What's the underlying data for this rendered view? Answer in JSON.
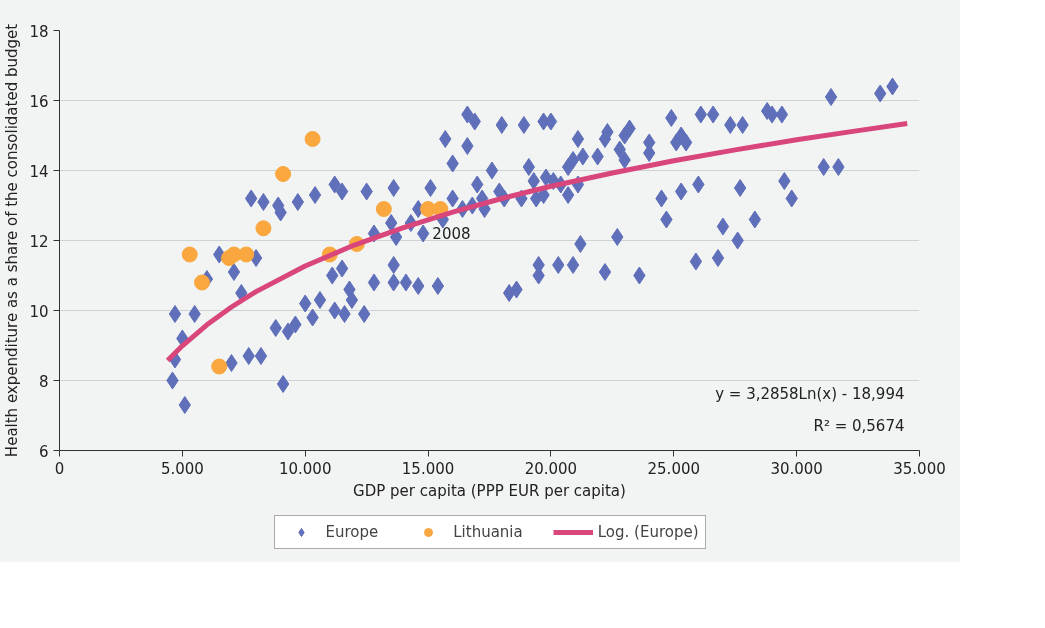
{
  "chart_data": {
    "type": "scatter",
    "xlabel": "GDP per capita (PPP EUR per capita)",
    "ylabel": "Health expenditure as a share of the consolidated budget",
    "xlim": [
      0,
      35000
    ],
    "ylim": [
      6,
      18
    ],
    "xticks": [
      0,
      {
        "value": 5000,
        "label": "5.000"
      },
      {
        "value": 10000,
        "label": "10.000"
      },
      {
        "value": 15000,
        "label": "15.000"
      },
      {
        "value": 20000,
        "label": "20.000"
      },
      {
        "value": 25000,
        "label": "25.000"
      },
      {
        "value": 30000,
        "label": "30.000"
      },
      {
        "value": 35000,
        "label": "35.000"
      }
    ],
    "yticks": [
      6,
      8,
      10,
      12,
      14,
      16,
      18
    ],
    "grid": "y",
    "legend": "bottom",
    "annotations": [
      {
        "text": "2008",
        "x": 15500,
        "y": 12.9
      },
      "y = 3,2858Ln(x) - 18,994",
      "R² = 0,5674"
    ],
    "series": [
      {
        "name": "Europe",
        "type": "scatter",
        "marker": "diamond",
        "color": "#5f6fb9",
        "x": [
          7800,
          8300,
          8900,
          9000,
          9700,
          10400,
          11200,
          11500,
          12500,
          13600,
          6500,
          8000,
          7100,
          6000,
          7400,
          4700,
          5500,
          5000,
          4700,
          7000,
          7700,
          8200,
          4600,
          5100,
          9100,
          8800,
          9300,
          9600,
          10000,
          10300,
          10600,
          11200,
          11600,
          11800,
          11900,
          12400,
          11500,
          11100,
          12800,
          13500,
          13700,
          12800,
          13600,
          13600,
          16600,
          16900,
          18000,
          18900,
          19700,
          20000,
          15700,
          16600,
          16000,
          21100,
          22300,
          22200,
          23000,
          22800,
          23000,
          20900,
          21300,
          21900,
          20700,
          19100,
          17600,
          15100,
          17000,
          19300,
          19800,
          20100,
          20400,
          21100,
          20700,
          17900,
          16000,
          17200,
          17300,
          16400,
          16800,
          18100,
          18800,
          19400,
          19700,
          14600,
          14300,
          14800,
          15600,
          21200,
          22700,
          14100,
          14600,
          15400,
          19500,
          19500,
          20300,
          20900,
          22200,
          18300,
          18600,
          31400,
          33400,
          33900,
          28800,
          29000,
          29400,
          26100,
          26600,
          27300,
          27800,
          24900,
          23200,
          24000,
          24000,
          25300,
          25100,
          25500,
          31100,
          31700,
          29500,
          29800,
          24500,
          25300,
          26000,
          27700,
          24700,
          27000,
          28300,
          27600,
          25900,
          26800,
          23600
        ],
        "values": [
          13.2,
          13.1,
          13.0,
          12.8,
          13.1,
          13.3,
          13.6,
          13.4,
          13.4,
          13.5,
          11.6,
          11.5,
          11.1,
          10.9,
          10.5,
          9.9,
          9.9,
          9.2,
          8.6,
          8.5,
          8.7,
          8.7,
          8.0,
          7.3,
          7.9,
          9.5,
          9.4,
          9.6,
          10.2,
          9.8,
          10.3,
          10.0,
          9.9,
          10.6,
          10.3,
          9.9,
          11.2,
          11.0,
          12.2,
          12.5,
          12.1,
          10.8,
          10.8,
          11.3,
          15.6,
          15.4,
          15.3,
          15.3,
          15.4,
          15.4,
          14.9,
          14.7,
          14.2,
          14.9,
          15.1,
          14.9,
          15.0,
          14.6,
          14.3,
          14.3,
          14.4,
          14.4,
          14.1,
          14.1,
          14.0,
          13.5,
          13.6,
          13.7,
          13.8,
          13.7,
          13.6,
          13.6,
          13.3,
          13.4,
          13.2,
          13.2,
          12.9,
          12.9,
          13.0,
          13.2,
          13.2,
          13.2,
          13.3,
          12.9,
          12.5,
          12.2,
          12.6,
          11.9,
          12.1,
          10.8,
          10.7,
          10.7,
          11.3,
          11.0,
          11.3,
          11.3,
          11.1,
          10.5,
          10.6,
          16.1,
          16.2,
          16.4,
          15.7,
          15.6,
          15.6,
          15.6,
          15.6,
          15.3,
          15.3,
          15.5,
          15.2,
          14.8,
          14.5,
          15.0,
          14.8,
          14.8,
          14.1,
          14.1,
          13.7,
          13.2,
          13.2,
          13.4,
          13.6,
          13.5,
          12.6,
          12.4,
          12.6,
          12.0,
          11.4,
          11.5,
          11.0
        ]
      },
      {
        "name": "Lithuania",
        "type": "scatter",
        "marker": "circle",
        "color": "#f9a73e",
        "x": [
          5300,
          5800,
          6500,
          6900,
          7100,
          7600,
          8300,
          9100,
          10300,
          11000,
          12100,
          13200,
          15000,
          15500
        ],
        "values": [
          11.6,
          10.8,
          8.4,
          11.5,
          11.6,
          11.6,
          12.35,
          13.9,
          14.9,
          11.6,
          11.9,
          12.9,
          12.9,
          12.9
        ]
      },
      {
        "name": "Log. (Europe)",
        "type": "line",
        "marker": "none",
        "color": "#d9467c",
        "x": [
          4400,
          5000,
          6000,
          7000,
          8000,
          10000,
          12000,
          14000,
          16000,
          18000,
          20000,
          22500,
          25000,
          27500,
          30000,
          32500,
          34500
        ],
        "values": [
          8.57,
          8.99,
          9.59,
          10.1,
          10.54,
          11.27,
          11.87,
          12.37,
          12.81,
          13.2,
          13.55,
          13.93,
          14.28,
          14.59,
          14.88,
          15.14,
          15.34
        ]
      }
    ]
  }
}
